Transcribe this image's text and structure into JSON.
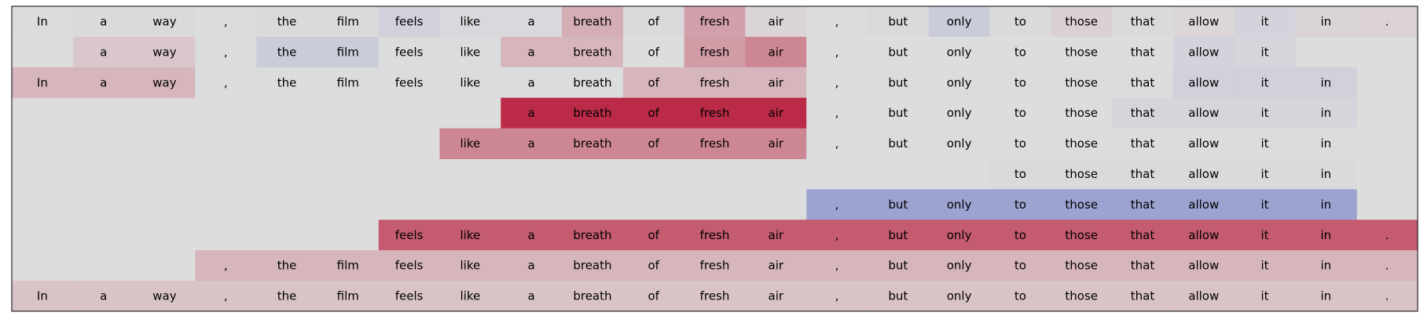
{
  "chart_data": {
    "type": "heatmap",
    "title": "",
    "xlabel": "",
    "ylabel": "",
    "grid": false,
    "legend": "none",
    "tokens": [
      "In",
      "a",
      "way",
      ",",
      "the",
      "film",
      "feels",
      "like",
      "a",
      "breath",
      "of",
      "fresh",
      "air",
      ",",
      "but",
      "only",
      "to",
      "those",
      "that",
      "allow",
      "it",
      "in",
      "."
    ],
    "colormap": [
      "#3b4cc0",
      "#dddddd",
      "#b40426"
    ],
    "value_range": [
      -1,
      1
    ],
    "rows": [
      {
        "start": 0,
        "end": 22,
        "values": [
          -0.01,
          -0.02,
          -0.02,
          -0.01,
          -0.02,
          -0.02,
          -0.08,
          -0.03,
          -0.03,
          0.22,
          -0.02,
          0.28,
          0.04,
          -0.01,
          -0.02,
          -0.12,
          -0.02,
          0.06,
          -0.02,
          0.03,
          -0.06,
          0.04,
          0.05
        ]
      },
      {
        "start": 1,
        "end": 20,
        "values": [
          0.1,
          0.1,
          -0.01,
          -0.12,
          -0.12,
          -0.01,
          -0.01,
          0.18,
          0.18,
          0.0,
          0.3,
          0.4,
          0.0,
          0.0,
          0.0,
          0.0,
          0.0,
          0.0,
          -0.07,
          -0.05
        ]
      },
      {
        "start": 0,
        "end": 21,
        "values": [
          0.18,
          0.18,
          0.18,
          -0.01,
          -0.01,
          -0.01,
          -0.01,
          -0.01,
          -0.01,
          -0.01,
          0.18,
          0.18,
          0.18,
          -0.01,
          -0.01,
          -0.01,
          -0.01,
          -0.01,
          -0.01,
          -0.08,
          -0.08,
          -0.08
        ]
      },
      {
        "start": 8,
        "end": 21,
        "values": [
          0.82,
          0.82,
          0.82,
          0.82,
          0.82,
          0.0,
          0.0,
          0.0,
          0.0,
          0.0,
          -0.05,
          -0.05,
          -0.05,
          -0.05
        ]
      },
      {
        "start": 7,
        "end": 21,
        "values": [
          0.4,
          0.4,
          0.4,
          0.4,
          0.4,
          0.4,
          -0.01,
          -0.01,
          -0.01,
          -0.01,
          -0.01,
          -0.01,
          -0.01,
          -0.01,
          -0.01
        ]
      },
      {
        "start": 16,
        "end": 21,
        "values": [
          -0.02,
          -0.02,
          -0.02,
          -0.02,
          -0.02,
          -0.02
        ]
      },
      {
        "start": 13,
        "end": 21,
        "values": [
          -0.4,
          -0.4,
          -0.4,
          -0.4,
          -0.4,
          -0.4,
          -0.4,
          -0.4,
          -0.4
        ]
      },
      {
        "start": 6,
        "end": 22,
        "values": [
          0.6,
          0.6,
          0.6,
          0.6,
          0.6,
          0.6,
          0.6,
          0.6,
          0.6,
          0.6,
          0.6,
          0.6,
          0.6,
          0.6,
          0.6,
          0.6,
          0.6
        ]
      },
      {
        "start": 3,
        "end": 22,
        "values": [
          0.18,
          0.18,
          0.18,
          0.18,
          0.18,
          0.18,
          0.18,
          0.18,
          0.18,
          0.18,
          0.18,
          0.18,
          0.18,
          0.18,
          0.18,
          0.18,
          0.18,
          0.18,
          0.18,
          0.18
        ]
      },
      {
        "start": 0,
        "end": 22,
        "values": [
          0.12,
          0.12,
          0.12,
          0.12,
          0.12,
          0.12,
          0.12,
          0.12,
          0.12,
          0.12,
          0.12,
          0.12,
          0.12,
          0.12,
          0.12,
          0.12,
          0.12,
          0.12,
          0.12,
          0.12,
          0.12,
          0.12,
          0.12
        ]
      }
    ]
  }
}
